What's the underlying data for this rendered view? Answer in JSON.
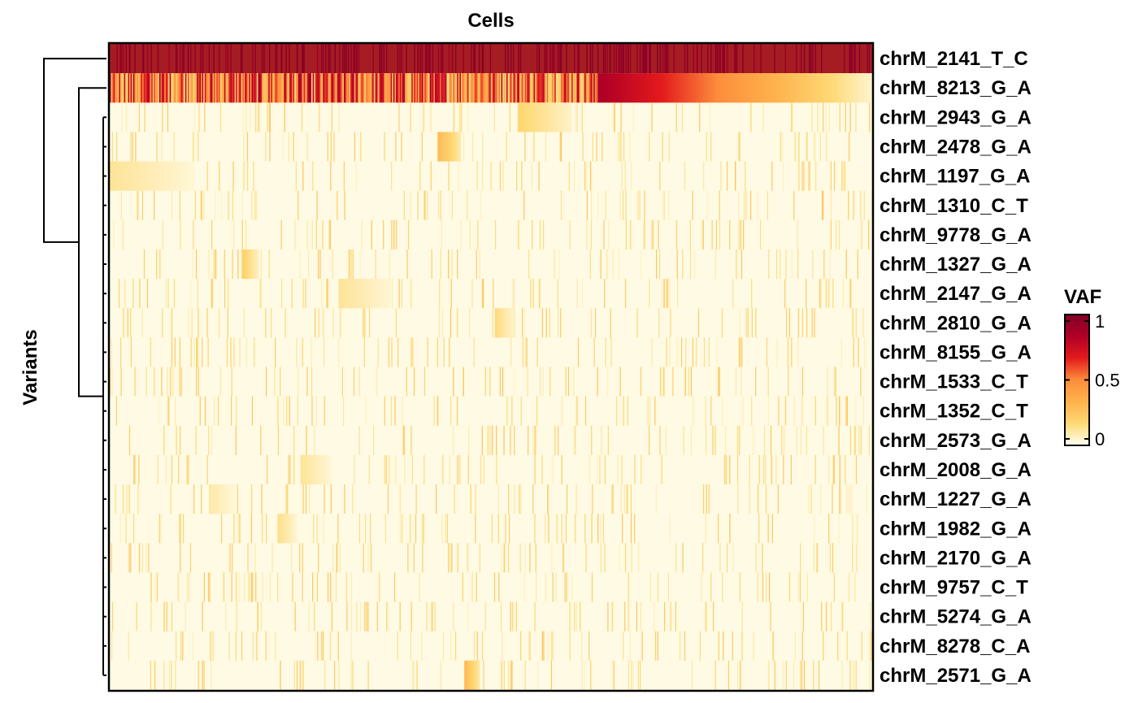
{
  "chart_data": {
    "type": "heatmap",
    "title": "Cells",
    "ylabel": "Variants",
    "legend": {
      "title": "VAF",
      "ticks": [
        "1",
        "0.5",
        "0"
      ],
      "range": [
        0,
        1
      ],
      "colors": [
        "#FFFFF2",
        "#FED976",
        "#FEB24C",
        "#FD8D3C",
        "#E31A1C",
        "#B10026",
        "#800026"
      ],
      "placement": "right"
    },
    "rows": [
      {
        "name": "chrM_2141_T_C",
        "base": 0.96,
        "bright": "#A51D22"
      },
      {
        "name": "chrM_8213_G_A",
        "base": 0.55
      },
      {
        "name": "chrM_2943_G_A",
        "base": 0.0,
        "block": [
          0.535,
          0.605,
          0.18
        ]
      },
      {
        "name": "chrM_2478_G_A",
        "base": 0.0,
        "block": [
          0.43,
          0.46,
          0.3
        ]
      },
      {
        "name": "chrM_1197_G_A",
        "base": 0.0,
        "block": [
          0.0,
          0.11,
          0.12
        ]
      },
      {
        "name": "chrM_1310_C_T",
        "base": 0.0
      },
      {
        "name": "chrM_9778_G_A",
        "base": 0.0
      },
      {
        "name": "chrM_1327_G_A",
        "base": 0.0,
        "block": [
          0.175,
          0.195,
          0.2
        ]
      },
      {
        "name": "chrM_2147_G_A",
        "base": 0.0,
        "block": [
          0.3,
          0.37,
          0.12
        ]
      },
      {
        "name": "chrM_2810_G_A",
        "base": 0.0,
        "block": [
          0.505,
          0.53,
          0.16
        ]
      },
      {
        "name": "chrM_8155_G_A",
        "base": 0.0
      },
      {
        "name": "chrM_1533_C_T",
        "base": 0.0
      },
      {
        "name": "chrM_1352_C_T",
        "base": 0.0
      },
      {
        "name": "chrM_2573_G_A",
        "base": 0.0
      },
      {
        "name": "chrM_2008_G_A",
        "base": 0.0,
        "block": [
          0.25,
          0.29,
          0.12
        ]
      },
      {
        "name": "chrM_1227_G_A",
        "base": 0.0,
        "block": [
          0.13,
          0.165,
          0.1
        ]
      },
      {
        "name": "chrM_1982_G_A",
        "base": 0.0,
        "block": [
          0.22,
          0.245,
          0.14
        ]
      },
      {
        "name": "chrM_2170_G_A",
        "base": 0.0
      },
      {
        "name": "chrM_9757_C_T",
        "base": 0.0
      },
      {
        "name": "chrM_5274_G_A",
        "base": 0.0
      },
      {
        "name": "chrM_8278_C_A",
        "base": 0.0
      },
      {
        "name": "chrM_2571_G_A",
        "base": 0.0,
        "block": [
          0.465,
          0.485,
          0.3
        ]
      }
    ]
  }
}
